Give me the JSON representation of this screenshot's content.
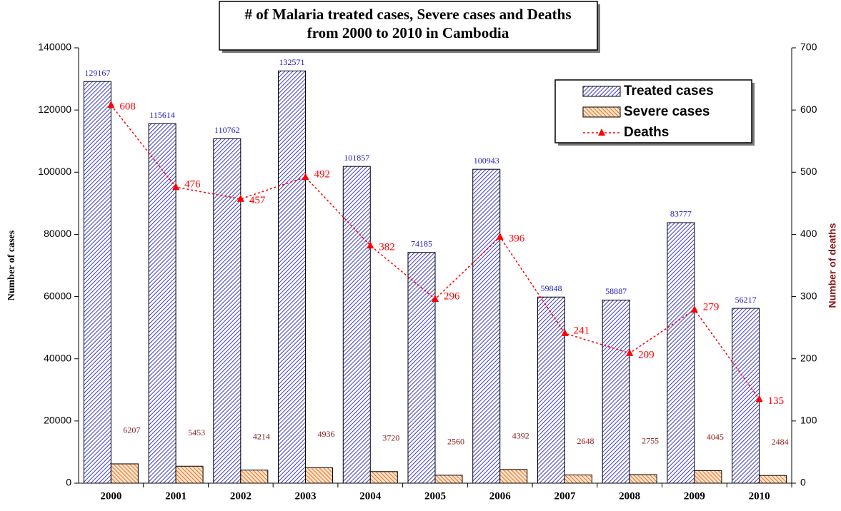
{
  "chart_data": {
    "type": "bar",
    "title": "# of Malaria treated cases, Severe cases and Deaths from 2000 to 2010 in Cambodia",
    "y_label": "Number of cases",
    "y2_label": "Number of deaths",
    "categories": [
      "2000",
      "2001",
      "2002",
      "2003",
      "2004",
      "2005",
      "2006",
      "2007",
      "2008",
      "2009",
      "2010"
    ],
    "series": [
      {
        "name": "Treated cases",
        "type": "bar",
        "color": "#3a3ac8",
        "values": [
          129167,
          115614,
          110762,
          132571,
          101857,
          74185,
          100943,
          59848,
          58887,
          83777,
          56217
        ]
      },
      {
        "name": "Severe cases",
        "type": "bar",
        "color": "#e0702a",
        "values": [
          6207,
          5453,
          4214,
          4936,
          3720,
          2560,
          4392,
          2648,
          2755,
          4045,
          2484
        ]
      },
      {
        "name": "Deaths",
        "type": "line",
        "axis": "y2",
        "color": "#ff0000",
        "values": [
          608,
          476,
          457,
          492,
          382,
          296,
          396,
          241,
          209,
          279,
          135
        ]
      }
    ],
    "ylim": [
      0,
      140000
    ],
    "yticks": [
      0,
      20000,
      40000,
      60000,
      80000,
      100000,
      120000,
      140000
    ],
    "y2lim": [
      0,
      700
    ],
    "y2ticks": [
      0,
      100,
      200,
      300,
      400,
      500,
      600,
      700
    ],
    "legend": "upper right"
  }
}
